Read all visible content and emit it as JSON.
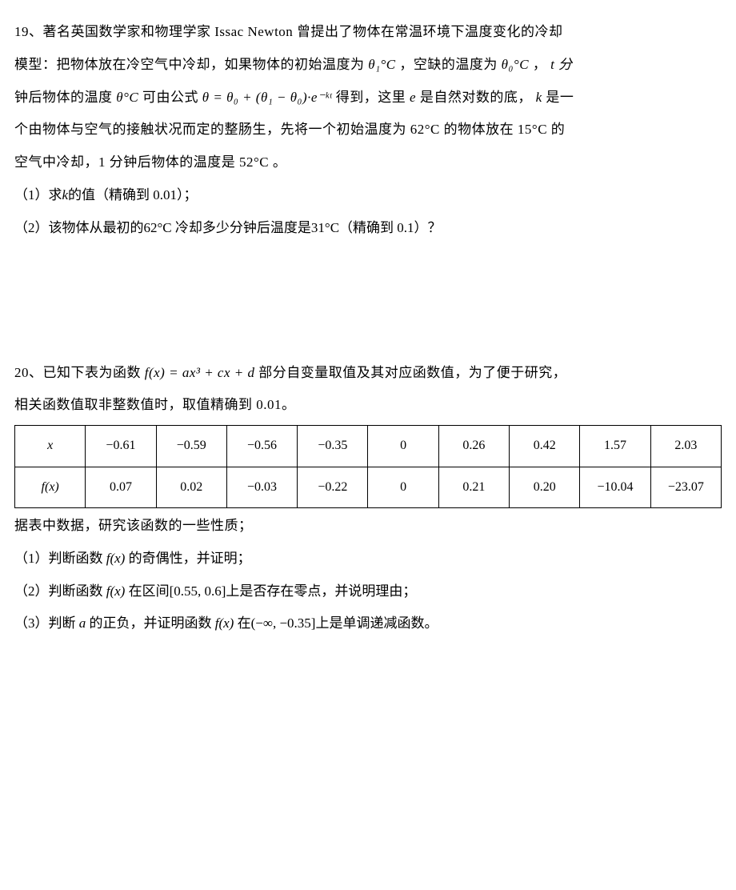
{
  "p19": {
    "line1a": "19、著名英国数学家和物理学家 Issac Newton 曾提出了物体在常温环境下温度变化的冷却",
    "line1b": "模型：把物体放在冷空气中冷却，如果物体的初始温度为",
    "theta1": "θ₁°C",
    "line1c": "，空缺的温度为",
    "theta0": "θ₀°C",
    "line1d": "，",
    "tmin": "t 分",
    "line2a": "钟后物体的温度",
    "thetaC": "θ°C",
    "line2b": " 可由公式 ",
    "formula": "θ = θ₀ + (θ₁ − θ₀)·e⁻ᵏᵗ",
    "line2c": "得到，这里 ",
    "e": "e",
    "line2d": " 是自然对数的底，",
    "k": "k",
    "line2e": "是一",
    "line3a": "个由物体与空气的接触状况而定的整肠生，先将一个初始温度为",
    "t62": "62°C",
    "line3b": " 的物体放在",
    "t15": "15°C",
    "line3c": " 的",
    "line4a": "空气中冷却，1 分钟后物体的温度是",
    "t52": "52°C",
    "line4b": "。",
    "q1a": "（1）求",
    "q1k": "k",
    "q1b": "的值（精确到 0.01）；",
    "q2a": "（2）该物体从最初的",
    "q2t": "62°C",
    "q2b": " 冷却多少分钟后温度是",
    "q2t2": "31°C",
    "q2c": "（精确到 0.1）？"
  },
  "p20": {
    "line1a": "20、已知下表为函数 ",
    "fx": "f(x) = ax³ + cx + d",
    "line1b": " 部分自变量取值及其对应函数值，为了便于研究，",
    "line2": "相关函数值取非整数值时，取值精确到 0.01。",
    "table": {
      "header_x": "x",
      "header_fx": "f(x)",
      "row_x": [
        "−0.61",
        "−0.59",
        "−0.56",
        "−0.35",
        "0",
        "0.26",
        "0.42",
        "1.57",
        "2.03"
      ],
      "row_fx": [
        "0.07",
        "0.02",
        "−0.03",
        "−0.22",
        "0",
        "0.21",
        "0.20",
        "−10.04",
        "−23.07"
      ]
    },
    "after": "据表中数据，研究该函数的一些性质；",
    "q1a": "（1）判断函数 ",
    "q1fx": "f(x)",
    "q1b": " 的奇偶性，并证明；",
    "q2a": "（2）判断函数 ",
    "q2fx": "f(x)",
    "q2b": " 在区间",
    "q2int": "[0.55, 0.6]",
    "q2c": "上是否存在零点，并说明理由；",
    "q3a": "（3）判断 ",
    "q3a2": "a",
    "q3b": " 的正负，并证明函数 ",
    "q3fx": "f(x)",
    "q3c": " 在",
    "q3int": "(−∞, −0.35]",
    "q3d": "上是单调递减函数。"
  },
  "style": {
    "text_color": "#000000",
    "background_color": "#ffffff",
    "font_size_body": 17,
    "font_size_table": 16,
    "border_color": "#000000",
    "border_width": 1.6
  }
}
